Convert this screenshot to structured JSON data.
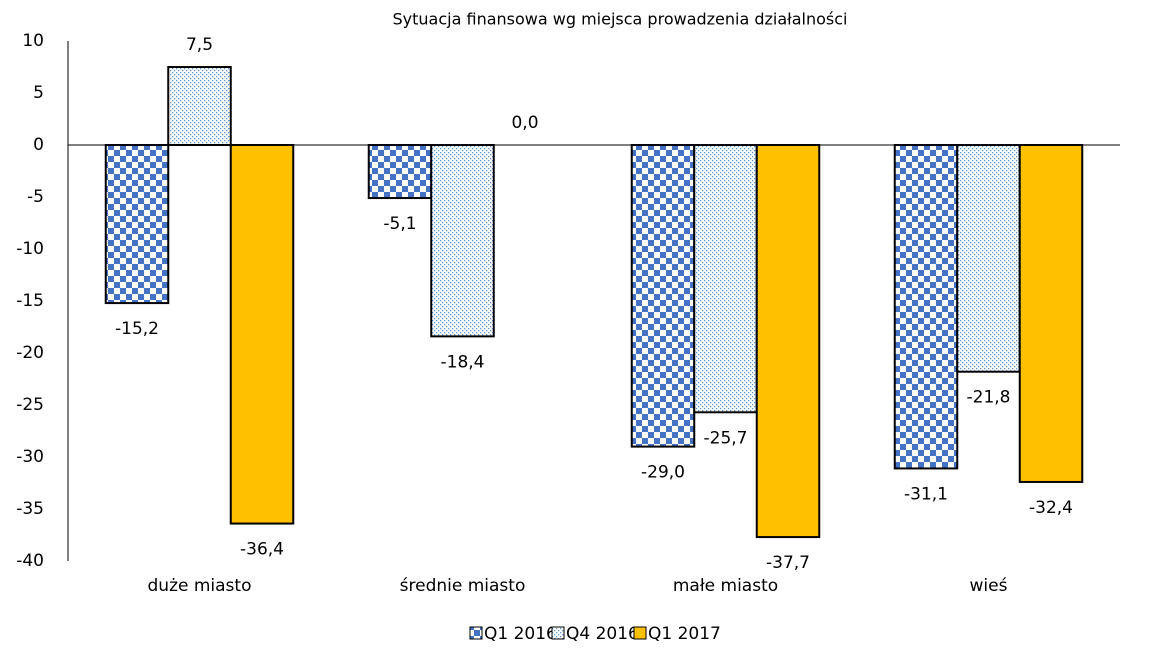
{
  "chart_data": {
    "type": "bar",
    "title": "Sytuacja finansowa wg miejsca prowadzenia działalności",
    "categories": [
      "duże miasto",
      "średnie miasto",
      "małe miasto",
      "wieś"
    ],
    "series": [
      {
        "name": "Q1 2016",
        "color": "#4472c4",
        "pattern": "checker",
        "values": [
          -15.2,
          -5.1,
          -29.0,
          -31.1
        ],
        "value_labels": [
          "-15,2",
          "-5,1",
          "-29,0",
          "-31,1"
        ]
      },
      {
        "name": "Q4 2016",
        "color": "#5b9bd5",
        "pattern": "dots",
        "values": [
          7.5,
          -18.4,
          -25.7,
          -21.8
        ],
        "value_labels": [
          "7,5",
          "-18,4",
          "-25,7",
          "-21,8"
        ]
      },
      {
        "name": "Q1 2017",
        "color": "#ffc000",
        "pattern": "solid",
        "values": [
          -36.4,
          0.0,
          -37.7,
          -32.4
        ],
        "value_labels": [
          "-36,4",
          "0,0",
          "-37,7",
          "-32,4"
        ]
      }
    ],
    "ylim": [
      -40,
      10
    ],
    "yticks": [
      10,
      5,
      0,
      -5,
      -10,
      -15,
      -20,
      -25,
      -30,
      -35,
      -40
    ],
    "grid": false,
    "legend": "bottom"
  }
}
